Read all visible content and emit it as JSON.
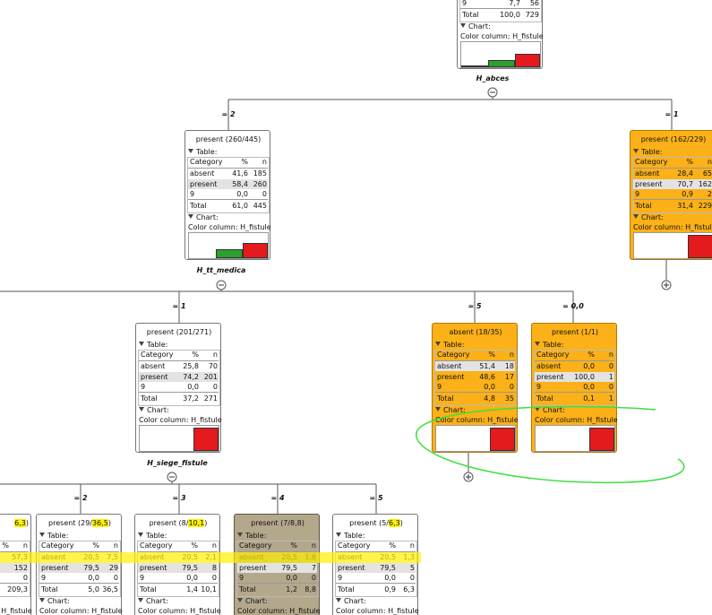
{
  "tree": {
    "labels": {
      "table": "Table:",
      "chart": "Chart:",
      "category": "Category",
      "pct": "%",
      "n": "n",
      "total": "Total",
      "color_column": "Color column: H_fistule"
    },
    "nodes": [
      {
        "rows": [
          [
            "9",
            "7,7",
            "56"
          ]
        ],
        "total": [
          "100,0",
          "729"
        ],
        "split": "H_abces"
      },
      {
        "title": "present (260/445)",
        "rows": [
          [
            "absent",
            "41,6",
            "185"
          ],
          [
            "present",
            "58,4",
            "260"
          ],
          [
            "9",
            "0,0",
            "0"
          ]
        ],
        "total": [
          "61,0",
          "445"
        ],
        "split": "H_tt_medica"
      },
      {
        "title": "present (162/229)",
        "rows": [
          [
            "absent",
            "28,4",
            "65"
          ],
          [
            "present",
            "70,7",
            "162"
          ],
          [
            "9",
            "0,9",
            "2"
          ]
        ],
        "total": [
          "31,4",
          "229"
        ]
      },
      {
        "title": "present (201/271)",
        "rows": [
          [
            "absent",
            "25,8",
            "70"
          ],
          [
            "present",
            "74,2",
            "201"
          ],
          [
            "9",
            "0,0",
            "0"
          ]
        ],
        "total": [
          "37,2",
          "271"
        ],
        "split": "H_siege_fistule"
      },
      {
        "title": "absent (18/35)",
        "rows": [
          [
            "absent",
            "51,4",
            "18"
          ],
          [
            "present",
            "48,6",
            "17"
          ],
          [
            "9",
            "0,0",
            "0"
          ]
        ],
        "total": [
          "4,8",
          "35"
        ]
      },
      {
        "title": "present (1/1)",
        "rows": [
          [
            "absent",
            "0,0",
            "0"
          ],
          [
            "present",
            "100,0",
            "1"
          ],
          [
            "9",
            "0,0",
            "0"
          ]
        ],
        "total": [
          "0,1",
          "1"
        ]
      },
      {
        "title_mark": "6,3",
        "title_end": ")",
        "rows": [
          [
            "57,3"
          ],
          [
            "152"
          ],
          [
            "0"
          ]
        ],
        "total": [
          "209,3"
        ]
      },
      {
        "title": "present (29/",
        "title_mark": "36,5",
        "title_end": ")",
        "rows": [
          [
            "absent",
            "20,5",
            "7,5"
          ],
          [
            "present",
            "79,5",
            "29"
          ],
          [
            "9",
            "0,0",
            "0"
          ]
        ],
        "total": [
          "5,0",
          "36,5"
        ]
      },
      {
        "title": "present (8/",
        "title_mark": "10,1",
        "title_end": ")",
        "rows": [
          [
            "absent",
            "20,5",
            "2,1"
          ],
          [
            "present",
            "79,5",
            "8"
          ],
          [
            "9",
            "0,0",
            "0"
          ]
        ],
        "total": [
          "1,4",
          "10,1"
        ]
      },
      {
        "title": "present (7/8,8)",
        "rows": [
          [
            "absent",
            "20,5",
            "1,8"
          ],
          [
            "present",
            "79,5",
            "7"
          ],
          [
            "9",
            "0,0",
            "0"
          ]
        ],
        "total": [
          "1,2",
          "8,8"
        ]
      },
      {
        "title": "present (5/",
        "title_mark": "6,3",
        "title_end": ")",
        "rows": [
          [
            "absent",
            "20,5",
            "1,3"
          ],
          [
            "present",
            "79,5",
            "5"
          ],
          [
            "9",
            "0,0",
            "0"
          ]
        ],
        "total": [
          "0,9",
          "6,3"
        ]
      }
    ],
    "branches": [
      "= 2",
      "= 1",
      "= 1",
      "= 5",
      "= 0,0",
      "= 2",
      "= 3",
      "= 4",
      "= 5"
    ]
  }
}
